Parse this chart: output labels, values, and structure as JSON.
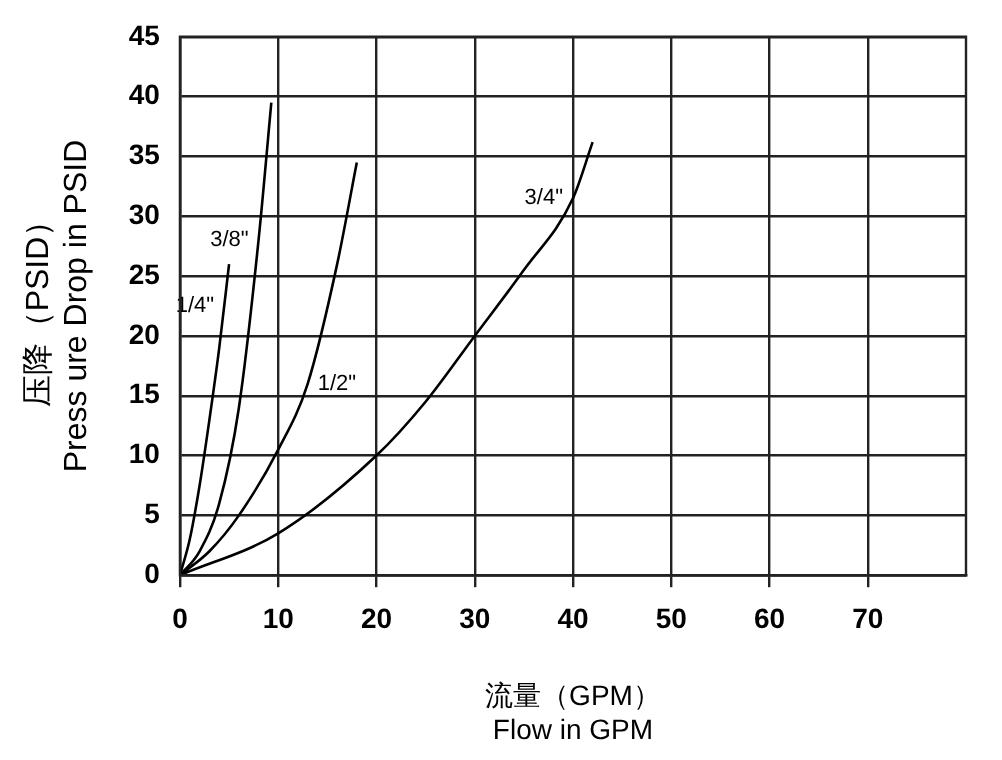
{
  "chart_data": {
    "type": "line",
    "xlabel": "流量（GPM）\nFlow in GPM",
    "ylabel": "压降（PSID）\nPress ure Drop in PSID",
    "xlim": [
      0,
      80
    ],
    "xticks": [
      0,
      10,
      20,
      30,
      40,
      50,
      60,
      70
    ],
    "ylim": [
      0,
      45
    ],
    "yticks": [
      0,
      5,
      10,
      15,
      20,
      25,
      30,
      35,
      40,
      45
    ],
    "grid": true,
    "legend": false,
    "marker": "none",
    "line_style": "solid",
    "series": [
      {
        "color": "#000000",
        "x": [
          0,
          1,
          2,
          3,
          4,
          5
        ],
        "values": [
          0,
          3,
          7.5,
          13,
          19,
          26
        ]
      },
      {
        "color": "#000000",
        "x": [
          0,
          2,
          4,
          6,
          8,
          9.3
        ],
        "values": [
          0,
          2,
          6,
          14,
          28,
          39.5
        ]
      },
      {
        "color": "#000000",
        "x": [
          0,
          3,
          6,
          10,
          13,
          16,
          18
        ],
        "values": [
          0,
          2,
          5,
          10.5,
          16,
          26,
          34.5
        ]
      },
      {
        "color": "#000000",
        "x": [
          0,
          10,
          20,
          25,
          30,
          35,
          40,
          42
        ],
        "values": [
          0,
          3.5,
          10,
          14.5,
          20,
          25.5,
          31.5,
          36.2
        ]
      }
    ],
    "annotations": [
      {
        "text": "1/4\"",
        "x": 4.5,
        "y": 22.5
      },
      {
        "text": "3/8\"",
        "x": 8,
        "y": 28
      },
      {
        "text": "1/2\"",
        "x": 13,
        "y": 16
      },
      {
        "text": "3/4\"",
        "x": 40,
        "y": 31.5
      }
    ]
  }
}
